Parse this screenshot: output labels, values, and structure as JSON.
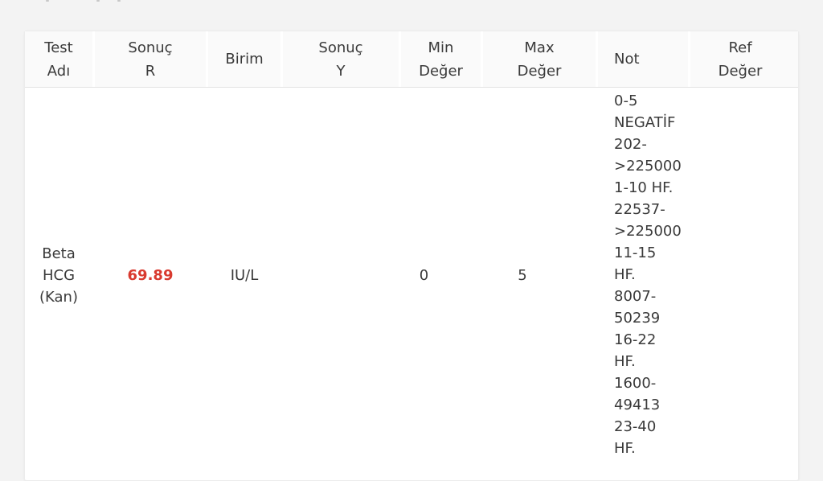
{
  "colors": {
    "page_bg": "#f3f3f3",
    "card_bg": "#ffffff",
    "header_bg": "#fafafa",
    "border": "#e3e3e3",
    "text": "#3a3a3a",
    "result_flag_red": "#d93a2f"
  },
  "table": {
    "columns": [
      {
        "id": "test_adi",
        "label_lines": [
          "Test",
          "Adı"
        ]
      },
      {
        "id": "sonuc_r",
        "label_lines": [
          "Sonuç",
          "R"
        ]
      },
      {
        "id": "birim",
        "label_lines": [
          "Birim"
        ]
      },
      {
        "id": "sonuc_y",
        "label_lines": [
          "Sonuç",
          "Y"
        ]
      },
      {
        "id": "min_deger",
        "label_lines": [
          "Min",
          "Değer"
        ]
      },
      {
        "id": "max_deger",
        "label_lines": [
          "Max",
          "Değer"
        ]
      },
      {
        "id": "not",
        "label_lines": [
          "Not"
        ]
      },
      {
        "id": "ref_deger",
        "label_lines": [
          "Ref",
          "Değer"
        ]
      }
    ],
    "rows": [
      {
        "test_adi_lines": [
          "Beta",
          "HCG",
          "(Kan)"
        ],
        "sonuc_r": "69.89",
        "sonuc_r_is_flagged": true,
        "birim": "IU/L",
        "sonuc_y": "",
        "min_deger": "0",
        "max_deger": "5",
        "ref_deger": "",
        "not_lines": [
          "0-5",
          "NEGATİF",
          "202-",
          ">225000",
          "1-10 HF.",
          "22537-",
          ">225000",
          "11-15",
          "HF.",
          "8007-",
          "50239",
          "16-22",
          "HF.",
          "1600-",
          "49413",
          "23-40",
          "HF."
        ]
      }
    ]
  }
}
